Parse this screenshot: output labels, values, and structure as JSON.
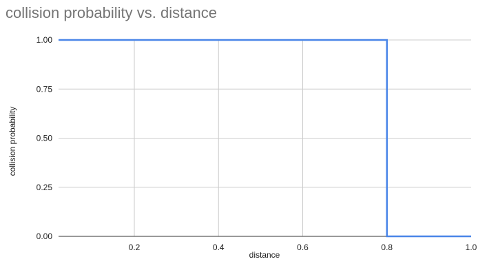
{
  "chart_data": {
    "type": "line",
    "title": "collision probability vs. distance",
    "xlabel": "distance",
    "ylabel": "collision probability",
    "xlim": [
      0.02,
      1.0
    ],
    "ylim": [
      0,
      1
    ],
    "x_ticks": [
      {
        "value": 0.2,
        "label": "0.2"
      },
      {
        "value": 0.4,
        "label": "0.4"
      },
      {
        "value": 0.6,
        "label": "0.6"
      },
      {
        "value": 0.8,
        "label": "0.8"
      },
      {
        "value": 1.0,
        "label": "1.0"
      }
    ],
    "y_ticks": [
      {
        "value": 0,
        "label": "0.00"
      },
      {
        "value": 0.25,
        "label": "0.25"
      },
      {
        "value": 0.5,
        "label": "0.50"
      },
      {
        "value": 0.75,
        "label": "0.75"
      },
      {
        "value": 1,
        "label": "1.00"
      }
    ],
    "grid": true,
    "legend": "none",
    "series": [
      {
        "color": "#4a86e8",
        "points": [
          {
            "x": 0.02,
            "y": 1
          },
          {
            "x": 0.8,
            "y": 1
          },
          {
            "x": 0.8,
            "y": 0
          },
          {
            "x": 1.0,
            "y": 0
          }
        ]
      }
    ]
  }
}
